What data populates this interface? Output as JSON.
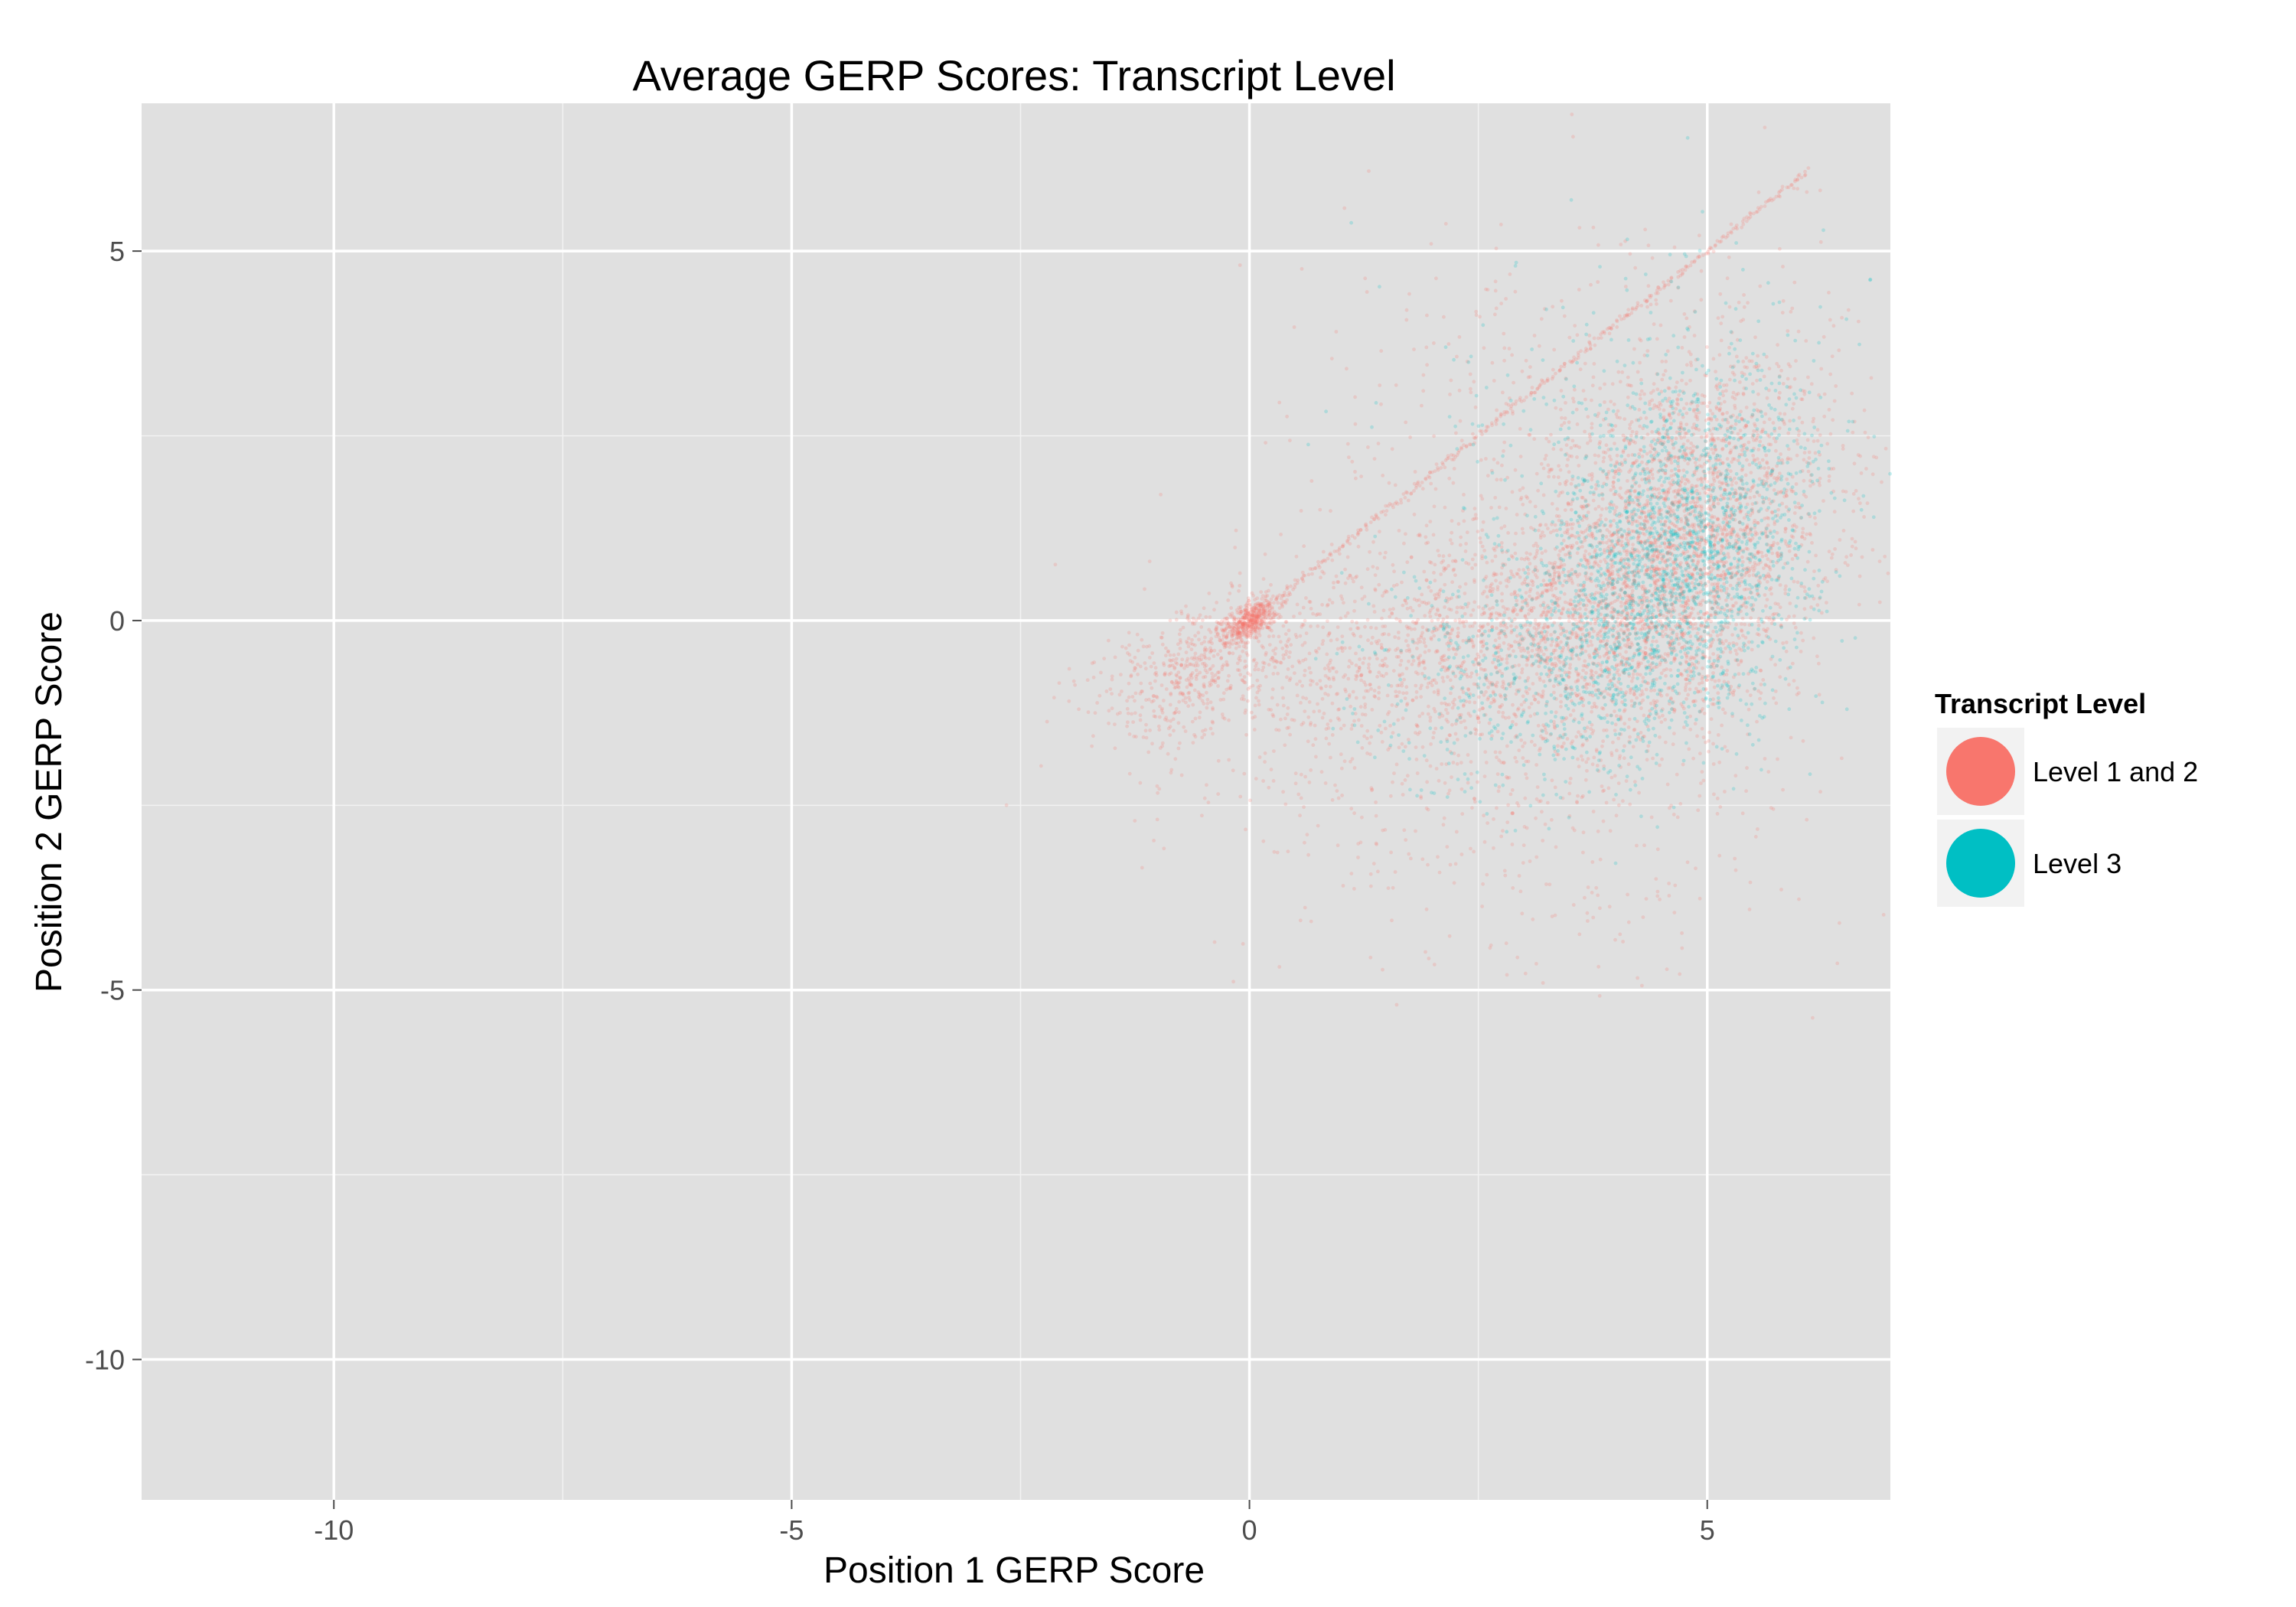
{
  "chart_data": {
    "type": "scatter",
    "title": "Average GERP Scores: Transcript Level",
    "xlabel": "Position 1 GERP Score",
    "ylabel": "Position 2 GERP Score",
    "xlim": [
      -12.1,
      7.0
    ],
    "ylim": [
      -11.9,
      7.0
    ],
    "x_ticks": [
      -10,
      -5,
      0,
      5
    ],
    "y_ticks": [
      -10,
      -5,
      0,
      5
    ],
    "x_minor": [
      -7.5,
      -2.5,
      2.5
    ],
    "y_minor": [
      -7.5,
      -2.5,
      2.5
    ],
    "grid": true,
    "panel_background": "#e0e0e0",
    "legend": {
      "title": "Transcript Level",
      "placement": "right"
    },
    "series": [
      {
        "name": "Level 1 and 2",
        "color": "#f8766d",
        "clusters": [
          {
            "cx": 4.6,
            "cy": 0.9,
            "sx": 0.9,
            "sy": 1.3,
            "rho": 0.3,
            "n": 3200
          },
          {
            "cx": 2.4,
            "cy": -0.4,
            "sx": 1.4,
            "sy": 0.9,
            "rho": 0.25,
            "n": 1700
          },
          {
            "cx": 0.0,
            "cy": 0.0,
            "sx": 0.15,
            "sy": 0.15,
            "rho": 0.6,
            "n": 450
          },
          {
            "cx": -0.6,
            "cy": -0.7,
            "sx": 0.55,
            "sy": 0.5,
            "rho": 0.4,
            "n": 500
          },
          {
            "cx": 3.5,
            "cy": 3.0,
            "sx": 1.5,
            "sy": 1.4,
            "rho": 0.2,
            "n": 320
          },
          {
            "cx": 3.0,
            "cy": -3.2,
            "sx": 1.6,
            "sy": 0.9,
            "rho": 0.0,
            "n": 220
          }
        ],
        "identity_line": {
          "from": 0.0,
          "to": 6.1,
          "n": 360
        }
      },
      {
        "name": "Level 3",
        "color": "#00bfc4",
        "clusters": [
          {
            "cx": 4.7,
            "cy": 0.8,
            "sx": 0.75,
            "sy": 1.2,
            "rho": 0.3,
            "n": 1900
          },
          {
            "cx": 3.2,
            "cy": -0.6,
            "sx": 1.0,
            "sy": 0.8,
            "rho": 0.2,
            "n": 500
          },
          {
            "cx": 4.0,
            "cy": 3.0,
            "sx": 1.2,
            "sy": 1.3,
            "rho": 0.2,
            "n": 150
          }
        ]
      }
    ]
  }
}
